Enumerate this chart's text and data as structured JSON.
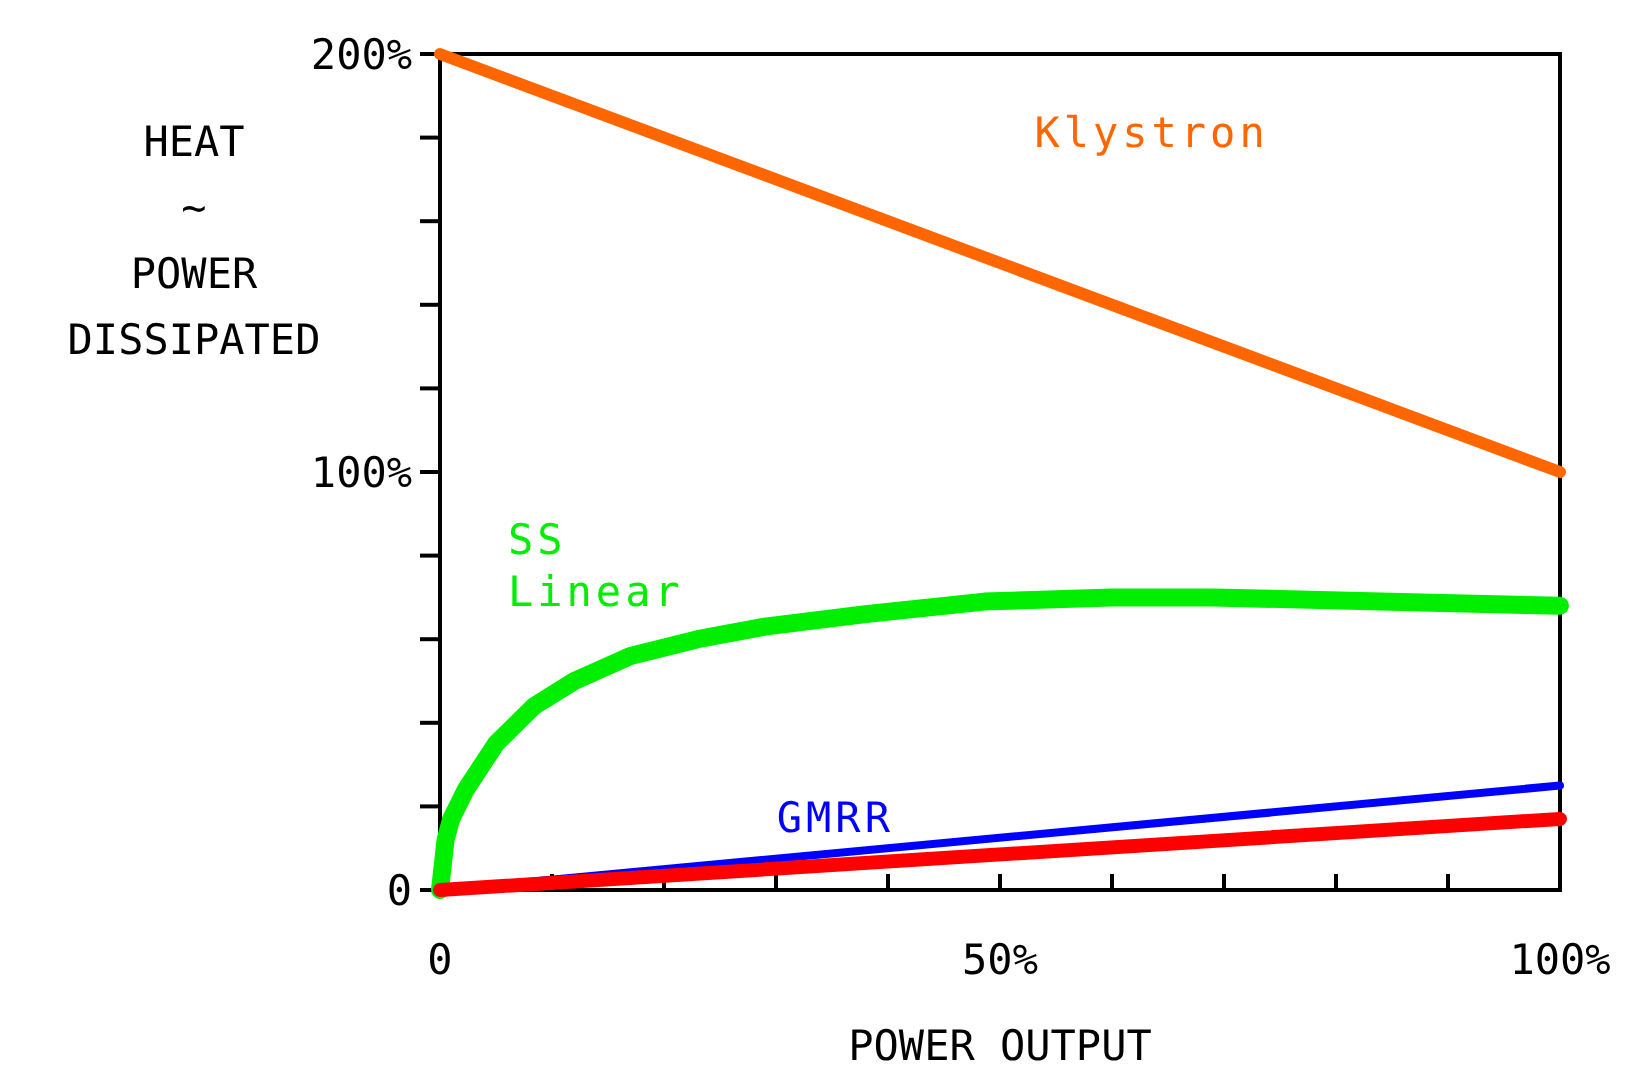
{
  "chart_data": {
    "type": "line",
    "xlabel": "POWER OUTPUT",
    "ylabel": "HEAT\n~\nPOWER\nDISSIPATED",
    "xlim": [
      0,
      100
    ],
    "ylim": [
      0,
      200
    ],
    "xticks": [
      {
        "value": 0,
        "label": "0"
      },
      {
        "value": 10,
        "label": null
      },
      {
        "value": 20,
        "label": null
      },
      {
        "value": 30,
        "label": null
      },
      {
        "value": 40,
        "label": null
      },
      {
        "value": 50,
        "label": "50%"
      },
      {
        "value": 60,
        "label": null
      },
      {
        "value": 70,
        "label": null
      },
      {
        "value": 80,
        "label": null
      },
      {
        "value": 90,
        "label": null
      },
      {
        "value": 100,
        "label": "100%"
      }
    ],
    "yticks": [
      {
        "value": 0,
        "label": "0"
      },
      {
        "value": 20,
        "label": null
      },
      {
        "value": 40,
        "label": null
      },
      {
        "value": 60,
        "label": null
      },
      {
        "value": 80,
        "label": null
      },
      {
        "value": 100,
        "label": "100%"
      },
      {
        "value": 120,
        "label": null
      },
      {
        "value": 140,
        "label": null
      },
      {
        "value": 160,
        "label": null
      },
      {
        "value": 180,
        "label": null
      },
      {
        "value": 200,
        "label": "200%"
      }
    ],
    "grid": false,
    "series": [
      {
        "name": "Klystron",
        "color": "#ff6600",
        "x": [
          0,
          100
        ],
        "values": [
          200,
          100
        ]
      },
      {
        "name": "SS\nLinear",
        "color": "#00ee00",
        "x": [
          0,
          0.5,
          1,
          2.3,
          5,
          8.4,
          12,
          17,
          23,
          29,
          38,
          48.6,
          60,
          69,
          84,
          100
        ],
        "values": [
          0,
          12,
          17,
          24,
          35,
          44,
          50,
          56,
          60,
          63,
          66,
          69,
          70,
          70,
          69,
          68
        ]
      },
      {
        "name": "GMRR",
        "color": "#0000ff",
        "x": [
          0,
          100
        ],
        "values": [
          0,
          25
        ]
      },
      {
        "color": "#ff0000",
        "x": [
          0,
          100
        ],
        "values": [
          0,
          17
        ]
      }
    ]
  }
}
